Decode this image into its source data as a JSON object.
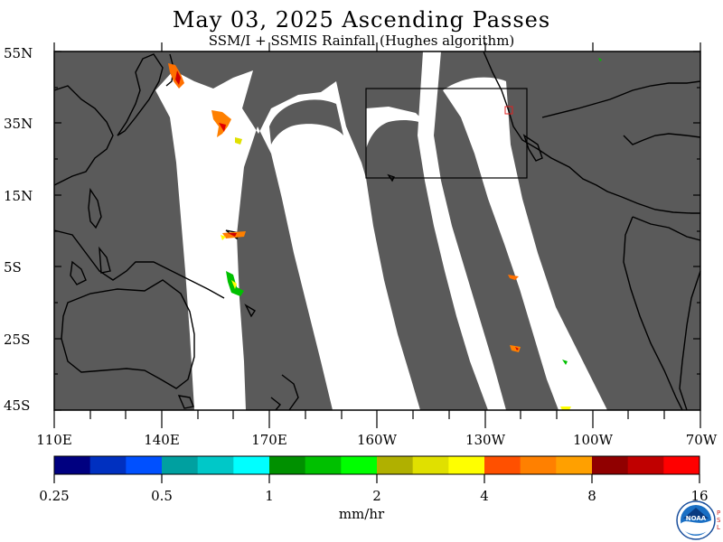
{
  "title": "May 03, 2025  Ascending Passes",
  "subtitle": "SSM/I + SSMIS Rainfall (Hughes algorithm)",
  "latitude_labels": [
    "55N",
    "35N",
    "15N",
    "5S",
    "25S",
    "45S"
  ],
  "longitude_labels": [
    "110E",
    "140E",
    "170E",
    "160W",
    "130W",
    "100W",
    "70W"
  ],
  "colorbar": {
    "colors": [
      "#000080",
      "#0030c0",
      "#0050ff",
      "#00a0a0",
      "#00c8c8",
      "#00ffff",
      "#009000",
      "#00c000",
      "#00ff00",
      "#b0b000",
      "#e0e000",
      "#ffff00",
      "#ff5000",
      "#ff8000",
      "#ffa000",
      "#900000",
      "#c00000",
      "#ff0000"
    ],
    "tick_labels": [
      "0.25",
      "0.5",
      "1",
      "2",
      "4",
      "8",
      "16"
    ],
    "unit": "mm/hr"
  },
  "map_colors": {
    "no_data": "#5a5a5a",
    "swath": "#ffffff",
    "coastline": "#000000"
  },
  "logo": {
    "text": "NOAA",
    "side_text": "PSL"
  }
}
